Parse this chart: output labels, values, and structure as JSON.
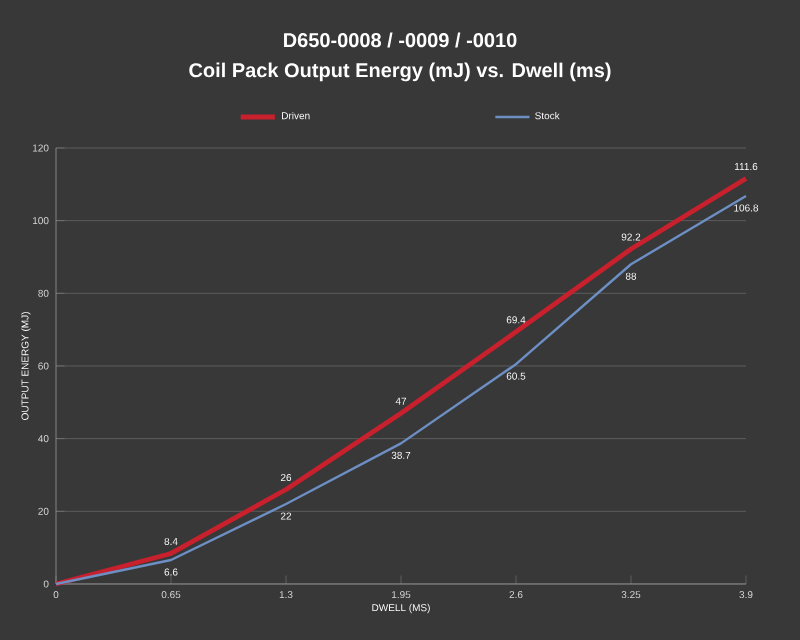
{
  "chart_data": {
    "type": "line",
    "title": "D650-0008 / -0009 / -0010",
    "subtitle": "Coil Pack Output Energy (mJ) vs. Dwell (ms)",
    "xlabel": "DWELL (MS)",
    "ylabel": "OUTPUT ENERGY (MJ)",
    "x": [
      0,
      0.65,
      1.3,
      1.95,
      2.6,
      3.25,
      3.9
    ],
    "series": [
      {
        "name": "Driven",
        "color": "#c8202c",
        "values": [
          0,
          8.4,
          26,
          47,
          69.4,
          92.2,
          111.6
        ],
        "value_labels": [
          null,
          "8.4",
          "26",
          "47",
          "69.4",
          "92.2",
          "111.6"
        ]
      },
      {
        "name": "Stock",
        "color": "#6d8fc4",
        "values": [
          0,
          6.6,
          22,
          38.7,
          60.5,
          88,
          106.8
        ],
        "value_labels": [
          null,
          "6.6",
          "22",
          "38.7",
          "60.5",
          "88",
          "106.8"
        ]
      }
    ],
    "xlim": [
      0,
      3.9
    ],
    "xticks": [
      0,
      0.65,
      1.3,
      1.95,
      2.6,
      3.25,
      3.9
    ],
    "ylim": [
      0,
      120
    ],
    "yticks": [
      0,
      20,
      40,
      60,
      80,
      100,
      120
    ],
    "grid": "y",
    "legend": "top",
    "marker": "none",
    "line_style": "solid"
  }
}
